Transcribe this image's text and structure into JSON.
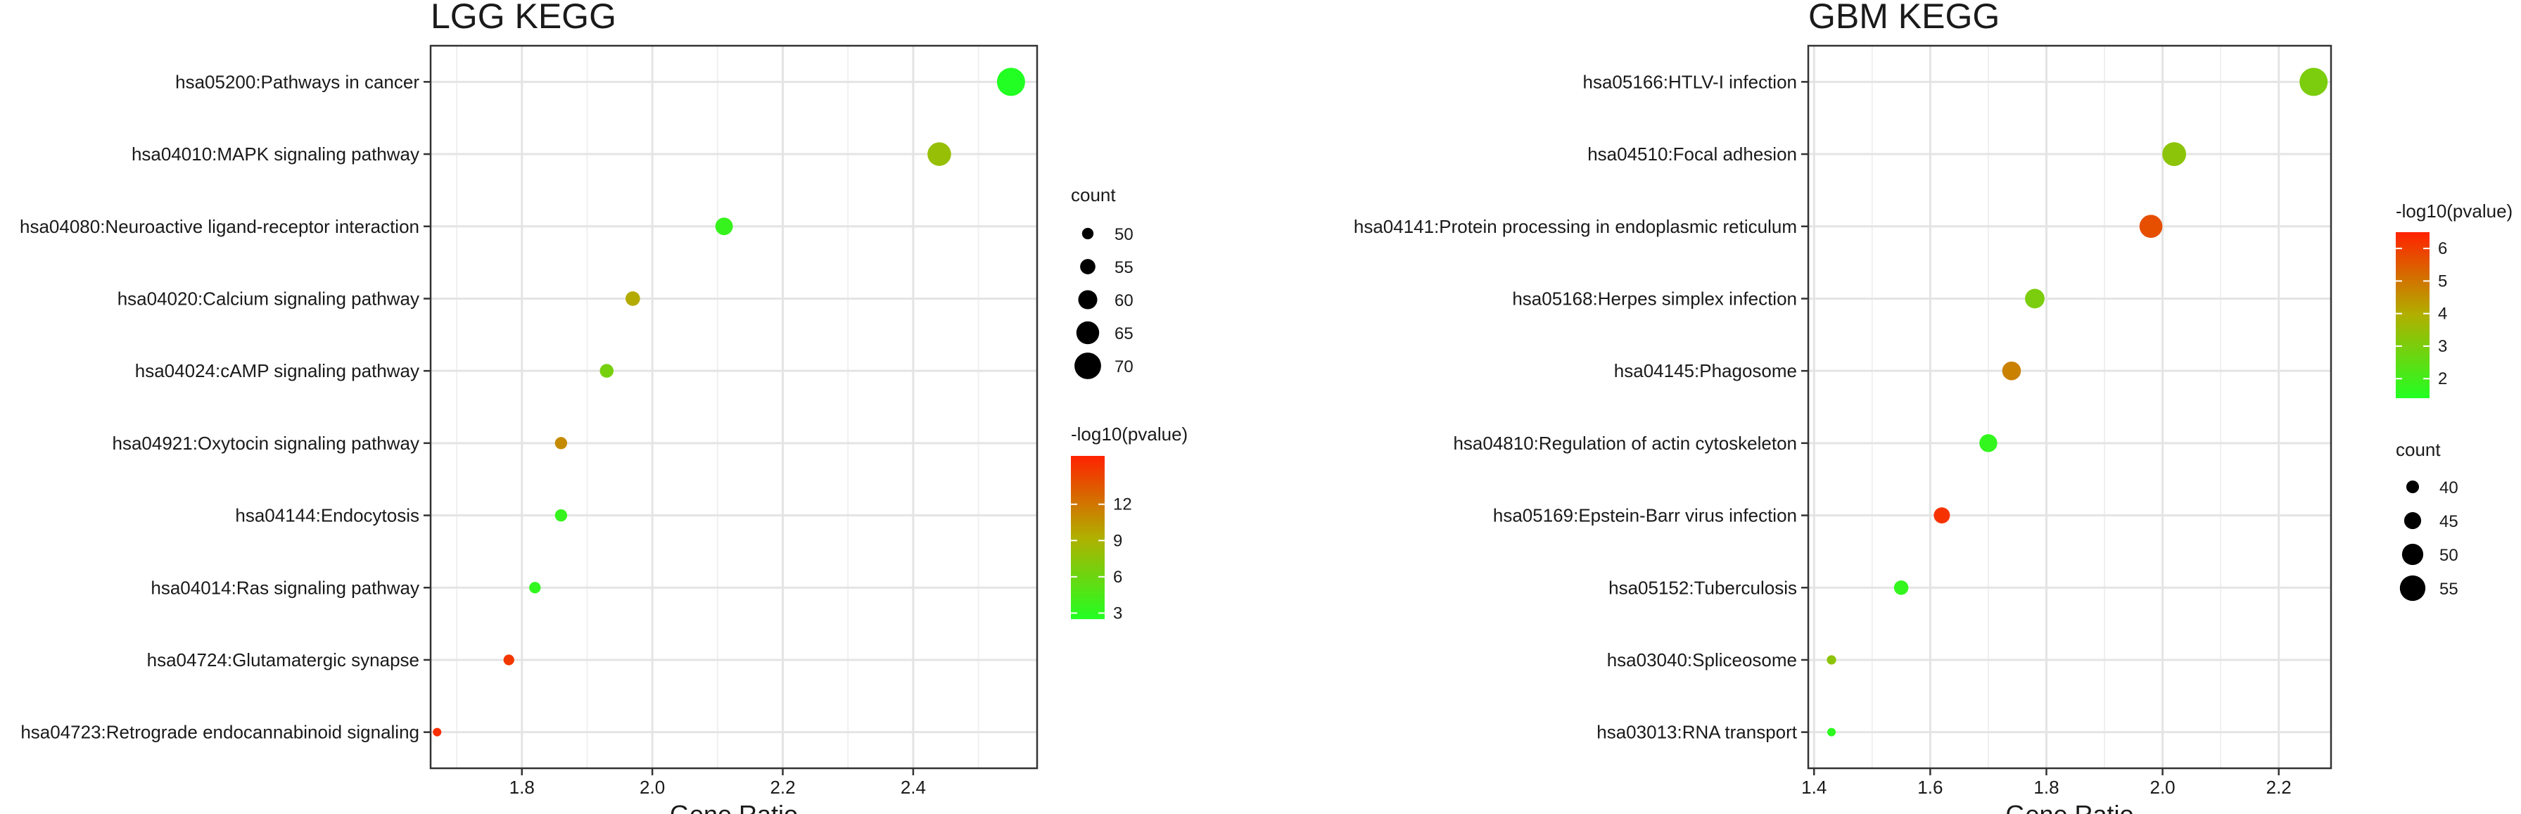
{
  "chart_data": [
    {
      "type": "scatter",
      "title": "LGG KEGG",
      "xlabel": "Gene Ratio",
      "ylabel": "",
      "xlim": [
        1.66,
        2.59
      ],
      "xticks": [
        1.8,
        2.0,
        2.2,
        2.4
      ],
      "xtick_labels": [
        "1.8",
        "2.0",
        "2.2",
        "2.4"
      ],
      "grid": true,
      "legend_placement": "right",
      "categories": [
        "hsa05200:Pathways in cancer",
        "hsa04010:MAPK signaling pathway",
        "hsa04080:Neuroactive ligand-receptor interaction",
        "hsa04020:Calcium signaling pathway",
        "hsa04024:cAMP signaling pathway",
        "hsa04921:Oxytocin signaling pathway",
        "hsa04144:Endocytosis",
        "hsa04014:Ras signaling pathway",
        "hsa04724:Glutamatergic synapse",
        "hsa04723:Retrograde endocannabinoid signaling"
      ],
      "points": [
        {
          "x": 2.55,
          "count": 72,
          "neglog10p": 2.5
        },
        {
          "x": 2.44,
          "count": 66,
          "neglog10p": 8.0
        },
        {
          "x": 2.11,
          "count": 58,
          "neglog10p": 3.5
        },
        {
          "x": 1.97,
          "count": 54,
          "neglog10p": 9.5
        },
        {
          "x": 1.93,
          "count": 53,
          "neglog10p": 6.5
        },
        {
          "x": 1.86,
          "count": 51,
          "neglog10p": 11.0
        },
        {
          "x": 1.86,
          "count": 51,
          "neglog10p": 3.5
        },
        {
          "x": 1.82,
          "count": 50,
          "neglog10p": 3.2
        },
        {
          "x": 1.78,
          "count": 49,
          "neglog10p": 15.0
        },
        {
          "x": 1.67,
          "count": 46,
          "neglog10p": 15.5
        }
      ],
      "size_legend": {
        "title": "count",
        "values": [
          50,
          55,
          60,
          65,
          70
        ],
        "labels": [
          "50",
          "55",
          "60",
          "65",
          "70"
        ],
        "range": [
          46,
          72
        ]
      },
      "color_legend": {
        "title": "-log10(pvalue)",
        "min": 2.5,
        "max": 16,
        "ticks": [
          3,
          6,
          9,
          12
        ],
        "labels": [
          "3",
          "6",
          "9",
          "12"
        ],
        "colors": [
          "#22ff22",
          "#b0b000",
          "#ff2200"
        ]
      }
    },
    {
      "type": "scatter",
      "title": "GBM KEGG",
      "xlabel": "Gene Ratio",
      "ylabel": "",
      "xlim": [
        1.39,
        2.29
      ],
      "xticks": [
        1.4,
        1.6,
        1.8,
        2.0,
        2.2
      ],
      "xtick_labels": [
        "1.4",
        "1.6",
        "1.8",
        "2.0",
        "2.2"
      ],
      "grid": true,
      "legend_placement": "right",
      "categories": [
        "hsa05166:HTLV-I infection",
        "hsa04510:Focal adhesion",
        "hsa04141:Protein processing in endoplasmic reticulum",
        "hsa05168:Herpes simplex infection",
        "hsa04145:Phagosome",
        "hsa04810:Regulation of actin cytoskeleton",
        "hsa05169:Epstein-Barr virus infection",
        "hsa05152:Tuberculosis",
        "hsa03040:Spliceosome",
        "hsa03013:RNA transport"
      ],
      "points": [
        {
          "x": 2.26,
          "count": 58,
          "neglog10p": 3.0
        },
        {
          "x": 2.02,
          "count": 53,
          "neglog10p": 3.3
        },
        {
          "x": 1.98,
          "count": 52,
          "neglog10p": 5.7
        },
        {
          "x": 1.78,
          "count": 48,
          "neglog10p": 3.0
        },
        {
          "x": 1.74,
          "count": 47,
          "neglog10p": 4.8
        },
        {
          "x": 1.7,
          "count": 46,
          "neglog10p": 1.7
        },
        {
          "x": 1.62,
          "count": 44,
          "neglog10p": 6.2
        },
        {
          "x": 1.55,
          "count": 42,
          "neglog10p": 1.7
        },
        {
          "x": 1.43,
          "count": 36,
          "neglog10p": 3.3
        },
        {
          "x": 1.43,
          "count": 35,
          "neglog10p": 1.6
        }
      ],
      "size_legend": {
        "title": "count",
        "values": [
          40,
          45,
          50,
          55
        ],
        "labels": [
          "40",
          "45",
          "50",
          "55"
        ],
        "range": [
          35,
          58
        ]
      },
      "color_legend": {
        "title": "-log10(pvalue)",
        "min": 1.4,
        "max": 6.5,
        "ticks": [
          2,
          3,
          4,
          5,
          6
        ],
        "labels": [
          "2",
          "3",
          "4",
          "5",
          "6"
        ],
        "colors": [
          "#22ff22",
          "#b0b000",
          "#ff2200"
        ]
      }
    }
  ]
}
